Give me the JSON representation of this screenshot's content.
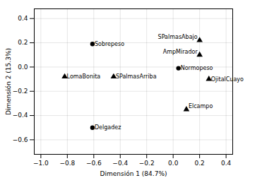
{
  "chart_data": {
    "type": "scatter",
    "xlabel": "Dimensión 1 (84.7%)",
    "ylabel": "Dimensión 2 (15.3%)",
    "xlim": [
      -1.05,
      0.45
    ],
    "ylim": [
      -0.72,
      0.48
    ],
    "xticks": [
      {
        "value": -1.0,
        "label": "−1.0"
      },
      {
        "value": -0.8,
        "label": "−0.8"
      },
      {
        "value": -0.6,
        "label": "−0.6"
      },
      {
        "value": -0.4,
        "label": "−0.4"
      },
      {
        "value": -0.2,
        "label": "−0.2"
      },
      {
        "value": 0.0,
        "label": "0.0"
      },
      {
        "value": 0.2,
        "label": "0.2"
      },
      {
        "value": 0.4,
        "label": "0.4"
      }
    ],
    "yticks": [
      {
        "value": -0.6,
        "label": "−0.6"
      },
      {
        "value": -0.4,
        "label": "−0.4"
      },
      {
        "value": -0.2,
        "label": "−0.2"
      },
      {
        "value": 0.0,
        "label": "0.0"
      },
      {
        "value": 0.2,
        "label": "0.2"
      },
      {
        "value": 0.4,
        "label": "0.4"
      }
    ],
    "grid": true,
    "series": [
      {
        "marker": "circle",
        "color": "black",
        "x": [
          -0.61,
          0.04,
          -0.61
        ],
        "y": [
          0.19,
          -0.01,
          -0.5
        ],
        "labels": [
          "Sobrepeso",
          "Normopeso",
          "Delgadez"
        ]
      },
      {
        "marker": "triangle",
        "color": "black",
        "x": [
          0.2,
          -0.82,
          -0.45,
          0.2,
          0.27,
          0.1
        ],
        "y": [
          0.22,
          -0.08,
          -0.08,
          0.1,
          -0.1,
          -0.35
        ],
        "labels": [
          "SPalmasAbajo",
          "LomaBonita",
          "SPalmasArriba",
          "AmpMirador",
          "OjitalCuayo",
          "Elcampo"
        ]
      }
    ]
  }
}
